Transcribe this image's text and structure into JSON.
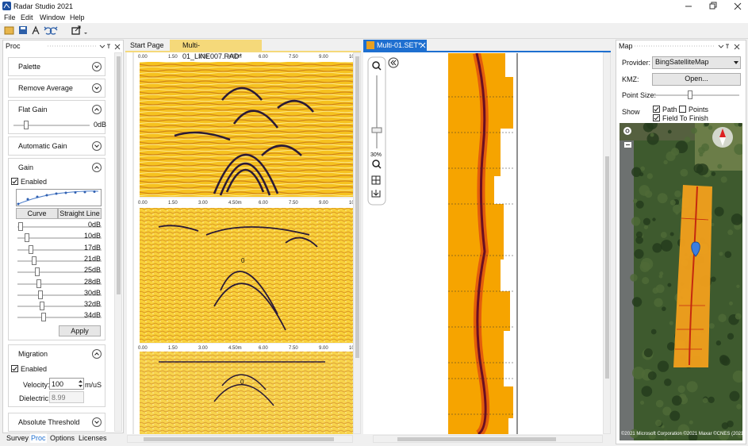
{
  "title_bar": {
    "title": "Radar Studio 2021"
  },
  "menu": [
    "File",
    "Edit",
    "Window",
    "Help"
  ],
  "left_panel": {
    "title": "Proc",
    "palette": "Palette",
    "remove_average": "Remove Average",
    "flat_gain": {
      "title": "Flat Gain",
      "value": "0dB"
    },
    "automatic_gain": "Automatic Gain",
    "gain": {
      "title": "Gain",
      "enabled_label": "Enabled",
      "enabled": true,
      "buttons": [
        "Curve",
        "Straight Line"
      ],
      "levels": [
        "0dB",
        "10dB",
        "17dB",
        "21dB",
        "25dB",
        "28dB",
        "30dB",
        "32dB",
        "34dB"
      ],
      "apply": "Apply"
    },
    "migration": {
      "title": "Migration",
      "enabled_label": "Enabled",
      "enabled": true,
      "velocity_label": "Velocity:",
      "velocity": "100",
      "velocity_unit": "m/uS",
      "dielectric_label": "Dielectric:",
      "dielectric": "8.99"
    },
    "absolute_threshold": "Absolute Threshold"
  },
  "bottom_tabs": [
    "Survey",
    "Proc",
    "Options",
    "Licenses"
  ],
  "editor_tabs": [
    "Start Page",
    "Multi-01_LINE007.RAD*"
  ],
  "radar_ruler": [
    "0.00",
    "1.50",
    "3.00",
    "4.50m",
    "6.00",
    "7.50",
    "9.00",
    "10."
  ],
  "radar_marker": "0",
  "set_tab": "Multi-01.SET*",
  "zoom": "30%",
  "map": {
    "title": "Map",
    "provider_label": "Provider:",
    "provider": "BingSatelliteMap",
    "kmz_label": "KMZ:",
    "open": "Open...",
    "point_size_label": "Point Size:",
    "show_label": "Show",
    "path": "Path",
    "path_checked": true,
    "points": "Points",
    "points_checked": false,
    "field_to_finish": "Field To Finish",
    "field_to_finish_checked": true,
    "copyright": "©2021 Microsoft Corporation ©2021 Maxar ©CNES (2021)"
  }
}
